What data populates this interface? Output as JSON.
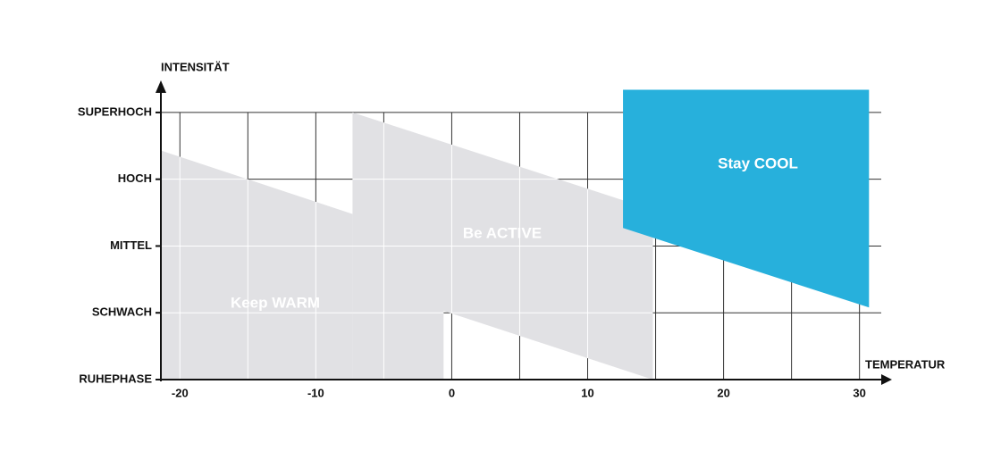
{
  "chart_data": {
    "type": "zones",
    "x_label": "TEMPERATUR",
    "y_label": "INTENSITÄT",
    "xlim": [
      -21.4,
      31.6
    ],
    "ylim": [
      0,
      4.4
    ],
    "xticks": [
      -20,
      -10,
      0,
      10,
      20,
      30
    ],
    "x_grid": [
      -20,
      -15,
      -10,
      -5,
      0,
      5,
      10,
      15,
      20,
      25,
      30
    ],
    "yticks": [
      {
        "value": 0,
        "label": "RUHEPHASE"
      },
      {
        "value": 1,
        "label": "SCHWACH"
      },
      {
        "value": 2,
        "label": "MITTEL"
      },
      {
        "value": 3,
        "label": "HOCH"
      },
      {
        "value": 4,
        "label": "SUPERHOCH"
      }
    ],
    "grid": true,
    "zones": [
      {
        "name": "Keep WARM",
        "color": "#e1e1e4",
        "points": [
          [
            -21.4,
            0
          ],
          [
            -21.4,
            3.43
          ],
          [
            -7.3,
            2.48
          ],
          [
            -7.3,
            0
          ]
        ]
      },
      {
        "name": "Be ACTIVE",
        "color": "#e1e1e4",
        "points": [
          [
            -7.3,
            0
          ],
          [
            -7.3,
            4.0
          ],
          [
            14.8,
            2.54
          ],
          [
            14.8,
            0
          ],
          [
            -0.6,
            1.03
          ],
          [
            -0.6,
            0
          ]
        ]
      },
      {
        "name": "Stay COOL",
        "color": "#27b0dc",
        "points": [
          [
            12.6,
            4.34
          ],
          [
            30.7,
            4.34
          ],
          [
            30.7,
            1.08
          ],
          [
            12.6,
            2.27
          ]
        ]
      }
    ]
  }
}
